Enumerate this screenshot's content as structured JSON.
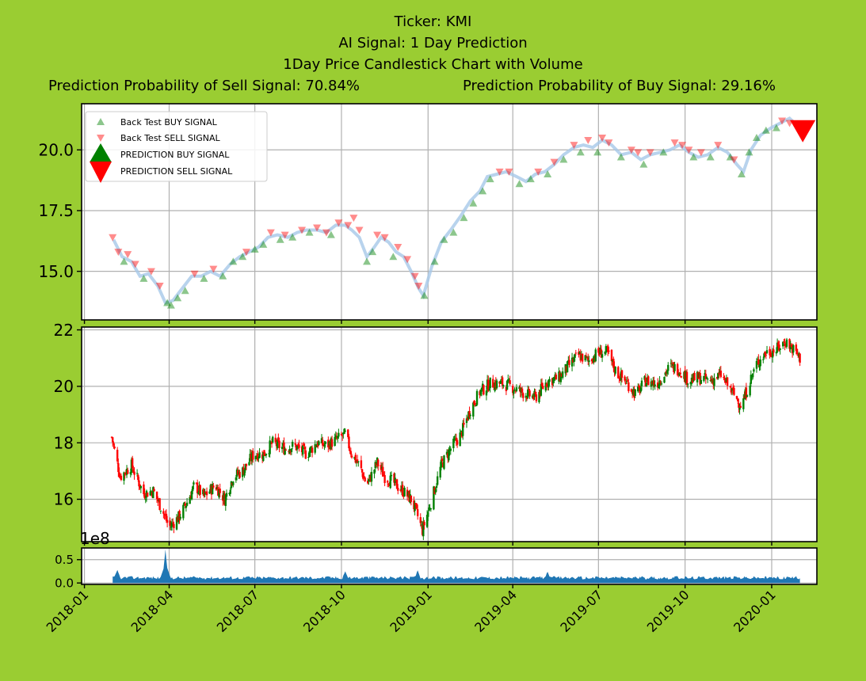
{
  "header": {
    "ticker_line": "Ticker: KMI",
    "signal_line": "AI Signal: 1 Day Prediction",
    "chart_line": "1Day Price Candlestick Chart with Volume",
    "sell_prob_line": "Prediction Probability of Sell Signal: 70.84%",
    "buy_prob_line": "Prediction Probability of Buy Signal: 29.16%"
  },
  "colors": {
    "background": "#9acd32",
    "buy": "#008000",
    "sell": "#ff0000",
    "price_line": "#a6c8e8",
    "volume": "#1f77b4",
    "grid": "#b0b0b0"
  },
  "chart_data": [
    {
      "type": "scatter",
      "panel": "signals",
      "legend": [
        "Back Test BUY SIGNAL",
        "Back Test SELL SIGNAL",
        "PREDICTION BUY SIGNAL",
        "PREDICTION SELL SIGNAL"
      ],
      "legend_position": "upper-left",
      "yticks": [
        "15.0",
        "17.5",
        "20.0"
      ],
      "ylim": [
        13.0,
        21.9
      ],
      "grid": true,
      "price_series": [
        [
          "2018-02-01",
          16.3
        ],
        [
          "2018-02-10",
          15.6
        ],
        [
          "2018-02-20",
          15.4
        ],
        [
          "2018-03-01",
          14.8
        ],
        [
          "2018-03-10",
          14.9
        ],
        [
          "2018-03-20",
          14.4
        ],
        [
          "2018-03-28",
          13.7
        ],
        [
          "2018-04-05",
          13.8
        ],
        [
          "2018-04-15",
          14.3
        ],
        [
          "2018-04-25",
          14.8
        ],
        [
          "2018-05-05",
          14.8
        ],
        [
          "2018-05-15",
          15.0
        ],
        [
          "2018-05-25",
          14.8
        ],
        [
          "2018-06-05",
          15.3
        ],
        [
          "2018-06-15",
          15.6
        ],
        [
          "2018-06-25",
          15.8
        ],
        [
          "2018-07-05",
          16.0
        ],
        [
          "2018-07-15",
          16.4
        ],
        [
          "2018-07-25",
          16.5
        ],
        [
          "2018-08-05",
          16.4
        ],
        [
          "2018-08-15",
          16.6
        ],
        [
          "2018-08-25",
          16.7
        ],
        [
          "2018-09-05",
          16.7
        ],
        [
          "2018-09-15",
          16.6
        ],
        [
          "2018-09-25",
          16.9
        ],
        [
          "2018-10-05",
          16.9
        ],
        [
          "2018-10-12",
          16.7
        ],
        [
          "2018-10-20",
          16.4
        ],
        [
          "2018-10-28",
          15.6
        ],
        [
          "2018-11-05",
          16.0
        ],
        [
          "2018-11-12",
          16.4
        ],
        [
          "2018-11-20",
          16.2
        ],
        [
          "2018-11-28",
          15.8
        ],
        [
          "2018-12-06",
          15.6
        ],
        [
          "2018-12-14",
          15.0
        ],
        [
          "2018-12-22",
          14.3
        ],
        [
          "2018-12-27",
          14.0
        ],
        [
          "2019-01-05",
          15.2
        ],
        [
          "2019-01-15",
          16.2
        ],
        [
          "2019-01-25",
          16.7
        ],
        [
          "2019-02-05",
          17.3
        ],
        [
          "2019-02-15",
          17.9
        ],
        [
          "2019-02-25",
          18.3
        ],
        [
          "2019-03-05",
          18.9
        ],
        [
          "2019-03-15",
          19.0
        ],
        [
          "2019-03-25",
          19.1
        ],
        [
          "2019-04-05",
          18.9
        ],
        [
          "2019-04-15",
          18.7
        ],
        [
          "2019-04-25",
          19.0
        ],
        [
          "2019-05-05",
          19.1
        ],
        [
          "2019-05-15",
          19.4
        ],
        [
          "2019-05-25",
          19.8
        ],
        [
          "2019-06-05",
          20.1
        ],
        [
          "2019-06-15",
          20.2
        ],
        [
          "2019-06-25",
          20.1
        ],
        [
          "2019-07-05",
          20.4
        ],
        [
          "2019-07-15",
          20.2
        ],
        [
          "2019-07-25",
          19.8
        ],
        [
          "2019-08-05",
          19.9
        ],
        [
          "2019-08-15",
          19.6
        ],
        [
          "2019-08-25",
          19.8
        ],
        [
          "2019-09-05",
          19.9
        ],
        [
          "2019-09-15",
          20.0
        ],
        [
          "2019-09-25",
          20.2
        ],
        [
          "2019-10-05",
          19.9
        ],
        [
          "2019-10-15",
          19.7
        ],
        [
          "2019-10-25",
          19.8
        ],
        [
          "2019-11-05",
          20.1
        ],
        [
          "2019-11-15",
          19.9
        ],
        [
          "2019-11-25",
          19.4
        ],
        [
          "2019-12-02",
          19.1
        ],
        [
          "2019-12-10",
          20.0
        ],
        [
          "2019-12-20",
          20.6
        ],
        [
          "2019-12-31",
          20.9
        ],
        [
          "2020-01-10",
          21.1
        ],
        [
          "2020-01-20",
          21.3
        ],
        [
          "2020-01-31",
          20.9
        ]
      ],
      "buy_signals": [
        [
          "2018-02-12",
          15.4
        ],
        [
          "2018-03-05",
          14.7
        ],
        [
          "2018-03-30",
          13.7
        ],
        [
          "2018-04-03",
          13.6
        ],
        [
          "2018-04-10",
          13.9
        ],
        [
          "2018-04-18",
          14.2
        ],
        [
          "2018-05-08",
          14.7
        ],
        [
          "2018-05-28",
          14.8
        ],
        [
          "2018-06-08",
          15.4
        ],
        [
          "2018-06-18",
          15.6
        ],
        [
          "2018-07-01",
          15.9
        ],
        [
          "2018-07-10",
          16.1
        ],
        [
          "2018-07-28",
          16.3
        ],
        [
          "2018-08-10",
          16.4
        ],
        [
          "2018-08-28",
          16.6
        ],
        [
          "2018-09-20",
          16.5
        ],
        [
          "2018-10-28",
          15.4
        ],
        [
          "2018-11-03",
          15.8
        ],
        [
          "2018-11-25",
          15.6
        ],
        [
          "2018-12-28",
          14.0
        ],
        [
          "2019-01-08",
          15.4
        ],
        [
          "2019-01-18",
          16.3
        ],
        [
          "2019-01-28",
          16.6
        ],
        [
          "2019-02-08",
          17.2
        ],
        [
          "2019-02-18",
          17.8
        ],
        [
          "2019-02-28",
          18.3
        ],
        [
          "2019-03-08",
          18.8
        ],
        [
          "2019-04-08",
          18.6
        ],
        [
          "2019-04-20",
          18.8
        ],
        [
          "2019-05-08",
          19.0
        ],
        [
          "2019-05-25",
          19.6
        ],
        [
          "2019-06-12",
          19.9
        ],
        [
          "2019-06-30",
          19.9
        ],
        [
          "2019-07-25",
          19.7
        ],
        [
          "2019-08-18",
          19.4
        ],
        [
          "2019-09-08",
          19.9
        ],
        [
          "2019-10-10",
          19.7
        ],
        [
          "2019-10-28",
          19.7
        ],
        [
          "2019-11-18",
          19.7
        ],
        [
          "2019-11-30",
          19.0
        ],
        [
          "2019-12-08",
          19.9
        ],
        [
          "2019-12-16",
          20.5
        ],
        [
          "2019-12-26",
          20.8
        ],
        [
          "2020-01-06",
          20.9
        ]
      ],
      "sell_signals": [
        [
          "2018-01-31",
          16.4
        ],
        [
          "2018-02-06",
          15.8
        ],
        [
          "2018-02-16",
          15.7
        ],
        [
          "2018-02-24",
          15.3
        ],
        [
          "2018-03-13",
          15.0
        ],
        [
          "2018-03-22",
          14.4
        ],
        [
          "2018-04-28",
          14.9
        ],
        [
          "2018-05-18",
          15.1
        ],
        [
          "2018-06-22",
          15.8
        ],
        [
          "2018-07-18",
          16.6
        ],
        [
          "2018-08-02",
          16.5
        ],
        [
          "2018-08-20",
          16.7
        ],
        [
          "2018-09-05",
          16.8
        ],
        [
          "2018-09-15",
          16.6
        ],
        [
          "2018-09-28",
          17.0
        ],
        [
          "2018-10-08",
          16.9
        ],
        [
          "2018-10-14",
          17.2
        ],
        [
          "2018-10-20",
          16.7
        ],
        [
          "2018-11-08",
          16.5
        ],
        [
          "2018-11-16",
          16.4
        ],
        [
          "2018-11-30",
          16.0
        ],
        [
          "2018-12-10",
          15.5
        ],
        [
          "2018-12-18",
          14.8
        ],
        [
          "2018-12-22",
          14.4
        ],
        [
          "2019-03-18",
          19.1
        ],
        [
          "2019-03-28",
          19.1
        ],
        [
          "2019-04-28",
          19.1
        ],
        [
          "2019-05-15",
          19.5
        ],
        [
          "2019-06-05",
          20.2
        ],
        [
          "2019-06-20",
          20.4
        ],
        [
          "2019-07-05",
          20.5
        ],
        [
          "2019-07-12",
          20.3
        ],
        [
          "2019-08-05",
          20.0
        ],
        [
          "2019-08-12",
          19.9
        ],
        [
          "2019-08-25",
          19.9
        ],
        [
          "2019-09-20",
          20.3
        ],
        [
          "2019-09-28",
          20.2
        ],
        [
          "2019-10-05",
          20.0
        ],
        [
          "2019-10-18",
          19.9
        ],
        [
          "2019-11-05",
          20.2
        ],
        [
          "2019-11-22",
          19.6
        ],
        [
          "2020-01-12",
          21.2
        ],
        [
          "2020-01-20",
          21.1
        ]
      ],
      "prediction": {
        "date": "2020-02-03",
        "value": 20.8,
        "signal": "SELL"
      }
    },
    {
      "type": "candlestick",
      "panel": "price",
      "yticks": [
        "16",
        "18",
        "20",
        "22"
      ],
      "ylim": [
        14.5,
        22.1
      ],
      "grid": true,
      "waypoints": [
        [
          "2018-01-30",
          18.2
        ],
        [
          "2018-02-08",
          16.8
        ],
        [
          "2018-02-20",
          17.2
        ],
        [
          "2018-03-05",
          16.2
        ],
        [
          "2018-03-15",
          16.3
        ],
        [
          "2018-03-25",
          15.6
        ],
        [
          "2018-04-01",
          15.0
        ],
        [
          "2018-04-12",
          15.4
        ],
        [
          "2018-04-20",
          15.9
        ],
        [
          "2018-04-28",
          16.5
        ],
        [
          "2018-05-08",
          16.1
        ],
        [
          "2018-05-20",
          16.5
        ],
        [
          "2018-05-30",
          16.0
        ],
        [
          "2018-06-08",
          16.8
        ],
        [
          "2018-06-18",
          17.0
        ],
        [
          "2018-06-30",
          17.6
        ],
        [
          "2018-07-10",
          17.6
        ],
        [
          "2018-07-20",
          18.0
        ],
        [
          "2018-08-01",
          17.8
        ],
        [
          "2018-08-12",
          17.9
        ],
        [
          "2018-08-25",
          17.6
        ],
        [
          "2018-09-05",
          18.0
        ],
        [
          "2018-09-15",
          17.9
        ],
        [
          "2018-09-25",
          18.1
        ],
        [
          "2018-10-05",
          18.3
        ],
        [
          "2018-10-12",
          17.6
        ],
        [
          "2018-10-20",
          17.2
        ],
        [
          "2018-10-28",
          16.5
        ],
        [
          "2018-11-08",
          17.3
        ],
        [
          "2018-11-16",
          16.8
        ],
        [
          "2018-11-25",
          16.6
        ],
        [
          "2018-12-05",
          16.3
        ],
        [
          "2018-12-14",
          16.0
        ],
        [
          "2018-12-20",
          15.5
        ],
        [
          "2018-12-26",
          14.9
        ],
        [
          "2019-01-05",
          16.0
        ],
        [
          "2019-01-15",
          17.2
        ],
        [
          "2019-01-25",
          17.8
        ],
        [
          "2019-02-05",
          18.3
        ],
        [
          "2019-02-15",
          19.2
        ],
        [
          "2019-02-25",
          19.8
        ],
        [
          "2019-03-08",
          20.1
        ],
        [
          "2019-03-20",
          20.1
        ],
        [
          "2019-03-30",
          20.0
        ],
        [
          "2019-04-10",
          19.8
        ],
        [
          "2019-04-25",
          19.6
        ],
        [
          "2019-05-08",
          20.2
        ],
        [
          "2019-05-20",
          20.3
        ],
        [
          "2019-06-01",
          20.8
        ],
        [
          "2019-06-10",
          21.1
        ],
        [
          "2019-06-20",
          20.9
        ],
        [
          "2019-07-01",
          21.2
        ],
        [
          "2019-07-10",
          21.2
        ],
        [
          "2019-07-20",
          20.5
        ],
        [
          "2019-08-01",
          20.1
        ],
        [
          "2019-08-10",
          19.7
        ],
        [
          "2019-08-20",
          20.2
        ],
        [
          "2019-09-01",
          20.1
        ],
        [
          "2019-09-15",
          20.7
        ],
        [
          "2019-09-25",
          20.6
        ],
        [
          "2019-10-05",
          20.2
        ],
        [
          "2019-10-15",
          20.3
        ],
        [
          "2019-10-28",
          20.2
        ],
        [
          "2019-11-08",
          20.4
        ],
        [
          "2019-11-20",
          19.8
        ],
        [
          "2019-11-30",
          19.3
        ],
        [
          "2019-12-08",
          20.1
        ],
        [
          "2019-12-16",
          20.8
        ],
        [
          "2019-12-26",
          21.2
        ],
        [
          "2020-01-06",
          21.3
        ],
        [
          "2020-01-16",
          21.6
        ],
        [
          "2020-01-24",
          21.3
        ],
        [
          "2020-01-31",
          21.0
        ]
      ]
    },
    {
      "type": "area",
      "panel": "volume",
      "scale_label": "1e8",
      "yticks": [
        "0.0",
        "0.5"
      ],
      "ylim": [
        -0.03,
        0.75
      ],
      "grid": true,
      "base_level": 0.14,
      "spikes": [
        [
          "2018-03-28",
          0.72
        ],
        [
          "2018-02-05",
          0.28
        ],
        [
          "2018-10-05",
          0.25
        ],
        [
          "2018-12-21",
          0.27
        ],
        [
          "2019-05-08",
          0.24
        ]
      ]
    }
  ],
  "x_axis": {
    "ticks": [
      "2018-01",
      "2018-04",
      "2018-07",
      "2018-10",
      "2019-01",
      "2019-04",
      "2019-07",
      "2019-10",
      "2020-01"
    ]
  }
}
